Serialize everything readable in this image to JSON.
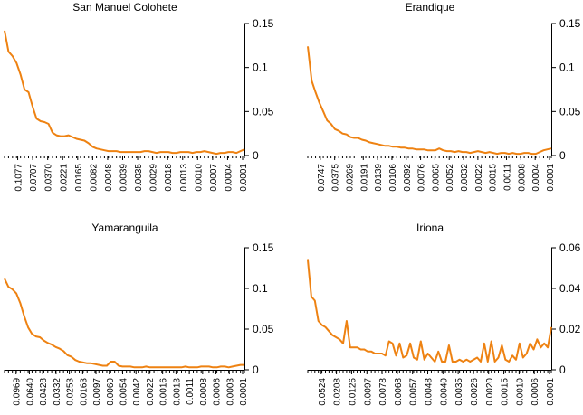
{
  "colors": {
    "line": "#ee8212",
    "axis": "#000000",
    "background": "#ffffff"
  },
  "chart_data": [
    {
      "type": "line",
      "title": "San Manuel Colohete",
      "ylim": [
        0,
        0.15
      ],
      "yticks": [
        "0.15",
        "0.1",
        "0.05",
        "0"
      ],
      "xticklabels": [
        "0.1077",
        "0.0707",
        "0.0370",
        "0.0221",
        "0.0165",
        "0.0082",
        "0.0048",
        "0.0039",
        "0.0035",
        "0.0029",
        "0.0018",
        "0.0013",
        "0.0010",
        "0.0007",
        "0.0004",
        "0.0001"
      ],
      "y": [
        0.142,
        0.118,
        0.113,
        0.105,
        0.092,
        0.075,
        0.072,
        0.056,
        0.042,
        0.039,
        0.038,
        0.036,
        0.026,
        0.023,
        0.022,
        0.022,
        0.023,
        0.021,
        0.019,
        0.018,
        0.017,
        0.014,
        0.01,
        0.008,
        0.007,
        0.006,
        0.005,
        0.005,
        0.005,
        0.004,
        0.004,
        0.004,
        0.004,
        0.004,
        0.004,
        0.005,
        0.005,
        0.004,
        0.003,
        0.004,
        0.004,
        0.004,
        0.003,
        0.003,
        0.004,
        0.004,
        0.004,
        0.003,
        0.004,
        0.004,
        0.005,
        0.004,
        0.003,
        0.002,
        0.003,
        0.003,
        0.004,
        0.004,
        0.003,
        0.005,
        0.007
      ]
    },
    {
      "type": "line",
      "title": "Erandique",
      "ylim": [
        0,
        0.15
      ],
      "yticks": [
        "0.15",
        "0.1",
        "0.05",
        "0"
      ],
      "xticklabels": [
        "0.0747",
        "0.0375",
        "0.0269",
        "0.0191",
        "0.0139",
        "0.0106",
        "0.0092",
        "0.0076",
        "0.0065",
        "0.0052",
        "0.0032",
        "0.0022",
        "0.0015",
        "0.0011",
        "0.0008",
        "0.0004",
        "0.0001"
      ],
      "y": [
        0.124,
        0.085,
        0.072,
        0.06,
        0.05,
        0.04,
        0.036,
        0.03,
        0.028,
        0.025,
        0.024,
        0.021,
        0.02,
        0.02,
        0.018,
        0.017,
        0.015,
        0.014,
        0.013,
        0.012,
        0.011,
        0.011,
        0.01,
        0.01,
        0.009,
        0.009,
        0.008,
        0.008,
        0.007,
        0.007,
        0.007,
        0.006,
        0.006,
        0.006,
        0.008,
        0.006,
        0.005,
        0.005,
        0.004,
        0.005,
        0.004,
        0.004,
        0.003,
        0.004,
        0.005,
        0.004,
        0.003,
        0.004,
        0.003,
        0.002,
        0.003,
        0.003,
        0.002,
        0.003,
        0.002,
        0.002,
        0.003,
        0.003,
        0.002,
        0.002,
        0.004,
        0.006,
        0.007,
        0.008
      ]
    },
    {
      "type": "line",
      "title": "Yamaranguila",
      "ylim": [
        0,
        0.15
      ],
      "yticks": [
        "0.15",
        "0.1",
        "0.05",
        "0"
      ],
      "xticklabels": [
        "0.0969",
        "0.0640",
        "0.0428",
        "0.0332",
        "0.0253",
        "0.0163",
        "0.0097",
        "0.0060",
        "0.0054",
        "0.0042",
        "0.0022",
        "0.0016",
        "0.0013",
        "0.0011",
        "0.0008",
        "0.0006",
        "0.0003",
        "0.0001"
      ],
      "y": [
        0.112,
        0.102,
        0.099,
        0.094,
        0.082,
        0.066,
        0.052,
        0.044,
        0.041,
        0.04,
        0.036,
        0.033,
        0.031,
        0.028,
        0.026,
        0.023,
        0.018,
        0.016,
        0.012,
        0.01,
        0.009,
        0.008,
        0.008,
        0.007,
        0.006,
        0.005,
        0.005,
        0.01,
        0.01,
        0.005,
        0.004,
        0.004,
        0.004,
        0.003,
        0.003,
        0.003,
        0.004,
        0.003,
        0.003,
        0.003,
        0.003,
        0.003,
        0.003,
        0.003,
        0.003,
        0.003,
        0.004,
        0.003,
        0.003,
        0.003,
        0.004,
        0.004,
        0.004,
        0.003,
        0.003,
        0.004,
        0.004,
        0.003,
        0.004,
        0.005,
        0.006,
        0.006
      ]
    },
    {
      "type": "line",
      "title": "Iriona",
      "ylim": [
        0,
        0.06
      ],
      "yticks": [
        "0.06",
        "0.04",
        "0.02",
        "0"
      ],
      "xticklabels": [
        "0.0524",
        "0.0208",
        "0.0126",
        "0.0097",
        "0.0078",
        "0.0068",
        "0.0057",
        "0.0048",
        "0.0040",
        "0.0035",
        "0.0026",
        "0.0020",
        "0.0015",
        "0.0010",
        "0.0006",
        "0.0001"
      ],
      "y": [
        0.054,
        0.036,
        0.034,
        0.024,
        0.022,
        0.021,
        0.019,
        0.017,
        0.016,
        0.015,
        0.013,
        0.024,
        0.011,
        0.011,
        0.011,
        0.01,
        0.01,
        0.009,
        0.009,
        0.008,
        0.008,
        0.008,
        0.007,
        0.014,
        0.013,
        0.007,
        0.013,
        0.006,
        0.007,
        0.013,
        0.006,
        0.005,
        0.014,
        0.005,
        0.008,
        0.006,
        0.004,
        0.009,
        0.004,
        0.004,
        0.012,
        0.004,
        0.004,
        0.005,
        0.004,
        0.005,
        0.004,
        0.005,
        0.006,
        0.004,
        0.013,
        0.004,
        0.014,
        0.004,
        0.006,
        0.012,
        0.005,
        0.004,
        0.007,
        0.005,
        0.013,
        0.006,
        0.008,
        0.013,
        0.01,
        0.015,
        0.011,
        0.013,
        0.011,
        0.021
      ]
    }
  ]
}
